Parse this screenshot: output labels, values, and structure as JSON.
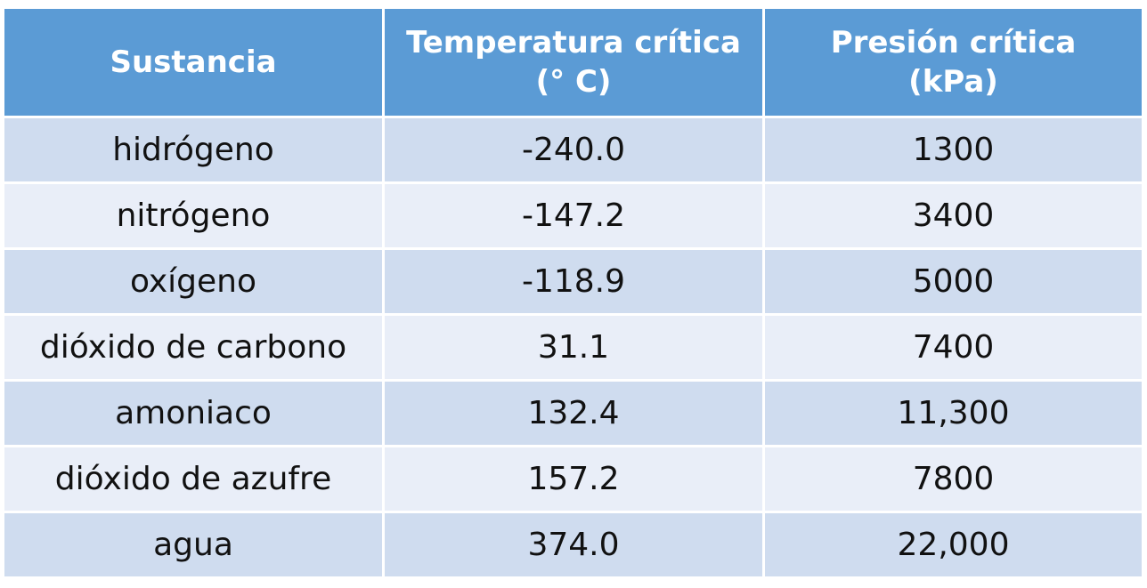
{
  "table": {
    "headers": [
      {
        "line1": "Sustancia",
        "line2": ""
      },
      {
        "line1": "Temperatura crítica",
        "line2": "(° C)"
      },
      {
        "line1": "Presión crítica",
        "line2": "(kPa)"
      }
    ],
    "rows": [
      [
        "hidrógeno",
        "-240.0",
        "1300"
      ],
      [
        "nitrógeno",
        "-147.2",
        "3400"
      ],
      [
        "oxígeno",
        "-118.9",
        "5000"
      ],
      [
        "dióxido de carbono",
        "31.1",
        "7400"
      ],
      [
        "amoniaco",
        "132.4",
        "11,300"
      ],
      [
        "dióxido de azufre",
        "157.2",
        "7800"
      ],
      [
        "agua",
        "374.0",
        "22,000"
      ]
    ],
    "colors": {
      "header_bg": "#5b9bd5",
      "row_odd_bg": "#cfdcef",
      "row_even_bg": "#e9eef8"
    }
  }
}
